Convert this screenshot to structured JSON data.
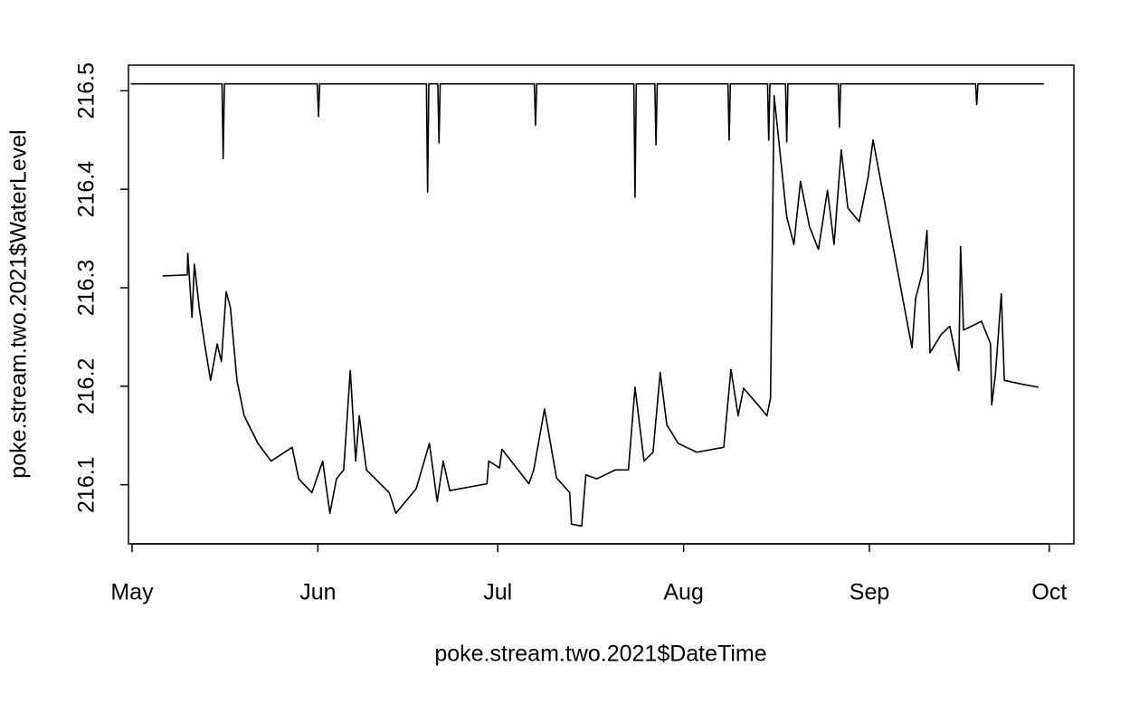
{
  "chart_data": {
    "type": "line",
    "xlabel": "poke.stream.two.2021$DateTime",
    "ylabel": "poke.stream.two.2021$WaterLevel",
    "xlim": [
      -0.6,
      157.1
    ],
    "ylim": [
      216.04,
      216.526
    ],
    "xticks": [
      {
        "value": 0,
        "label": "May"
      },
      {
        "value": 31,
        "label": "Jun"
      },
      {
        "value": 61,
        "label": "Jul"
      },
      {
        "value": 92,
        "label": "Aug"
      },
      {
        "value": 123,
        "label": "Sep"
      },
      {
        "value": 153,
        "label": "Oct"
      }
    ],
    "yticks": [
      216.1,
      216.2,
      216.3,
      216.4,
      216.5
    ],
    "series": [
      {
        "color": "#000000",
        "x": [
          -0.2,
          15.0,
          15.2,
          15.4,
          30.9,
          31.1,
          31.3,
          49.1,
          49.3,
          49.5,
          51.0,
          51.2,
          51.4,
          67.1,
          67.3,
          67.5,
          83.7,
          83.9,
          84.1,
          87.2,
          87.4,
          87.6,
          99.4,
          99.6,
          99.8,
          106.0,
          106.2,
          106.4,
          109.0,
          109.2,
          109.4,
          117.8,
          118.0,
          118.2,
          140.7,
          140.9,
          141.1,
          152.1
        ],
        "values": [
          216.507,
          216.507,
          216.431,
          216.507,
          216.507,
          216.474,
          216.507,
          216.507,
          216.397,
          216.507,
          216.507,
          216.447,
          216.507,
          216.507,
          216.465,
          216.507,
          216.507,
          216.392,
          216.507,
          216.507,
          216.445,
          216.507,
          216.507,
          216.45,
          216.507,
          216.507,
          216.45,
          216.507,
          216.507,
          216.448,
          216.507,
          216.507,
          216.463,
          216.507,
          216.507,
          216.486,
          216.507,
          216.507
        ]
      },
      {
        "color": "#000000",
        "x": [
          5.1,
          9.2,
          9.3,
          10.0,
          10.4,
          11.2,
          12.1,
          13.1,
          14.2,
          14.9,
          15.7,
          16.4,
          17.5,
          18.7,
          21.0,
          23.2,
          26.7,
          27.8,
          30.0,
          31.8,
          33.0,
          34.1,
          35.3,
          36.4,
          37.3,
          37.9,
          39.1,
          42.9,
          44.0,
          47.4,
          49.6,
          50.9,
          51.9,
          53.0,
          59.2,
          59.5,
          61.3,
          61.7,
          66.2,
          67.0,
          68.8,
          70.8,
          73.0,
          73.3,
          75.0,
          75.7,
          77.5,
          80.6,
          82.8,
          83.9,
          85.4,
          86.9,
          88.1,
          89.2,
          91.1,
          94.2,
          98.7,
          99.9,
          101.1,
          102.0,
          104.7,
          105.9,
          106.5,
          107.1,
          109.2,
          110.4,
          111.5,
          113.0,
          114.5,
          116.0,
          117.1,
          118.3,
          119.4,
          121.3,
          122.8,
          123.6,
          130.1,
          130.7,
          131.9,
          132.6,
          133.1,
          134.9,
          136.4,
          137.9,
          138.2,
          138.7,
          141.7,
          143.2,
          143.4,
          144.0,
          145.0,
          145.5,
          148.5,
          151.2
        ],
        "values": [
          216.312,
          216.313,
          216.335,
          216.27,
          216.324,
          216.28,
          216.243,
          216.206,
          216.243,
          216.225,
          216.296,
          216.28,
          216.206,
          216.17,
          216.142,
          216.124,
          216.138,
          216.106,
          216.092,
          216.124,
          216.071,
          216.106,
          216.115,
          216.216,
          216.124,
          216.17,
          216.115,
          216.092,
          216.071,
          216.096,
          216.142,
          216.083,
          216.124,
          216.094,
          216.101,
          216.124,
          216.117,
          216.136,
          216.101,
          216.115,
          216.177,
          216.107,
          216.092,
          216.06,
          216.058,
          216.11,
          216.106,
          216.115,
          216.115,
          216.199,
          216.124,
          216.133,
          216.214,
          216.161,
          216.142,
          216.133,
          216.138,
          216.217,
          216.17,
          216.198,
          216.179,
          216.17,
          216.188,
          216.495,
          216.372,
          216.344,
          216.408,
          216.362,
          216.339,
          216.399,
          216.344,
          216.44,
          216.381,
          216.367,
          216.413,
          216.45,
          216.239,
          216.289,
          216.317,
          216.358,
          216.234,
          216.252,
          216.261,
          216.216,
          216.342,
          216.257,
          216.266,
          216.243,
          216.181,
          216.211,
          216.294,
          216.206,
          216.202,
          216.199
        ]
      }
    ]
  }
}
